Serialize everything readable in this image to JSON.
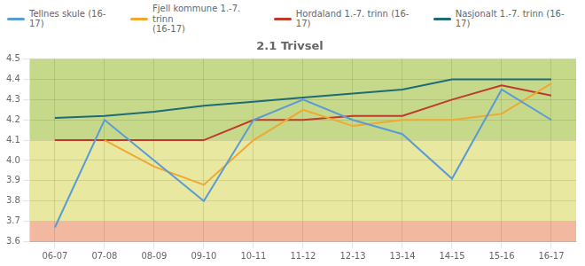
{
  "chart_data": {
    "type": "line",
    "title": "2.1 Trivsel",
    "categories": [
      "06-07",
      "07-08",
      "08-09",
      "09-10",
      "10-11",
      "11-12",
      "12-13",
      "13-14",
      "14-15",
      "15-16",
      "16-17"
    ],
    "series": [
      {
        "name": "Tellnes skule (16-17)",
        "color": "#5b9bd5",
        "values": [
          3.67,
          4.2,
          null,
          3.8,
          4.2,
          4.3,
          4.2,
          4.13,
          3.91,
          4.35,
          4.2
        ]
      },
      {
        "name": "Fjell kommune 1.-7. trinn\n(16-17)",
        "color": "#f0a830",
        "values": [
          null,
          4.1,
          3.97,
          3.88,
          4.1,
          4.25,
          4.17,
          4.2,
          4.2,
          4.23,
          4.38
        ]
      },
      {
        "name": "Hordaland 1.-7. trinn (16-17)",
        "color": "#c0392b",
        "values": [
          4.1,
          4.1,
          4.1,
          4.1,
          4.2,
          4.2,
          4.22,
          4.22,
          4.3,
          4.37,
          4.32
        ]
      },
      {
        "name": "Nasjonalt 1.-7. trinn (16-17)",
        "color": "#1f6b75",
        "values": [
          4.21,
          4.22,
          4.24,
          4.27,
          4.29,
          4.31,
          4.33,
          4.35,
          4.4,
          4.4,
          4.4
        ]
      }
    ],
    "ylim": [
      3.6,
      4.5
    ],
    "yticks": [
      3.6,
      3.7,
      3.8,
      3.9,
      {
        "value": 4.0,
        "label": "4.0"
      },
      4.1,
      4.2,
      4.3,
      4.4,
      4.5
    ],
    "bands": [
      {
        "bottom": 4.1,
        "top": 4.5,
        "color": "#c6d98a"
      },
      {
        "bottom": 3.7,
        "top": 4.1,
        "color": "#e8e8a0"
      },
      {
        "bottom": 3.6,
        "top": 3.7,
        "color": "#f2b8a0"
      }
    ],
    "grid": true,
    "legend": "top"
  }
}
